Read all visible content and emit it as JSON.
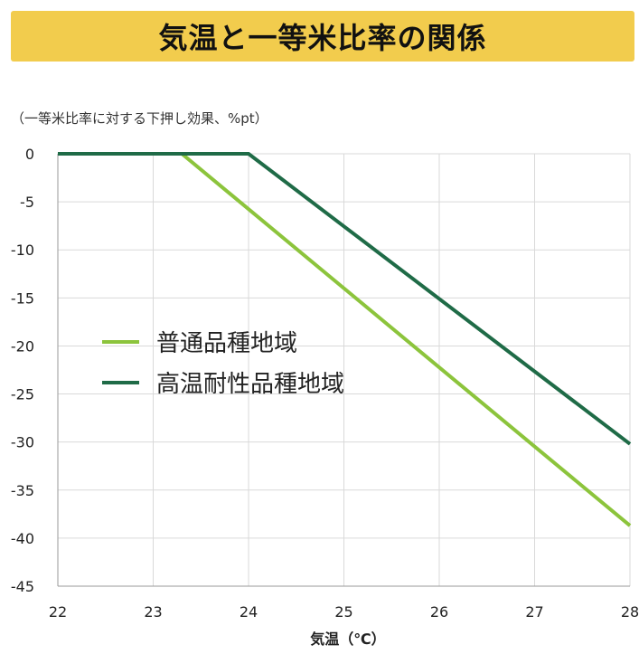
{
  "header": {
    "title": "気温と一等米比率の関係"
  },
  "chart_data": {
    "type": "line",
    "ylabel": "（一等米比率に対する下押し効果、%pt）",
    "xlabel": "気温（℃）",
    "xlim": [
      22,
      28
    ],
    "ylim": [
      -45,
      0
    ],
    "x_ticks": [
      "22",
      "23",
      "24",
      "25",
      "26",
      "27",
      "28"
    ],
    "y_ticks": [
      "0",
      "-5",
      "-10",
      "-15",
      "-20",
      "-25",
      "-30",
      "-35",
      "-40",
      "-45"
    ],
    "grid": true,
    "legend_position": "center-left",
    "series": [
      {
        "name": "普通品種地域",
        "color": "#8cc43c",
        "points": [
          [
            22,
            0
          ],
          [
            23.3,
            0
          ],
          [
            28,
            -38.7
          ]
        ]
      },
      {
        "name": "高温耐性品種地域",
        "color": "#1f6b47",
        "points": [
          [
            22,
            0
          ],
          [
            24.0,
            0
          ],
          [
            28,
            -30.2
          ]
        ]
      }
    ]
  }
}
